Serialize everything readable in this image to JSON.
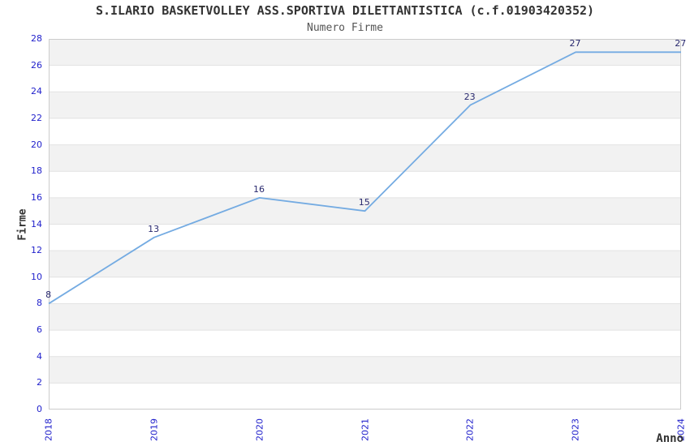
{
  "chart_data": {
    "type": "line",
    "title": "S.ILARIO BASKETVOLLEY ASS.SPORTIVA DILETTANTISTICA (c.f.01903420352)",
    "subtitle": "Numero Firme",
    "xlabel": "Anno",
    "ylabel": "Firme",
    "categories": [
      "2018",
      "2019",
      "2020",
      "2021",
      "2022",
      "2023",
      "2024"
    ],
    "series": [
      {
        "name": "Numero Firme",
        "values": [
          8,
          13,
          16,
          15,
          23,
          27,
          27
        ]
      }
    ],
    "data_labels": [
      "8",
      "13",
      "16",
      "15",
      "23",
      "27",
      "27"
    ],
    "ylim": [
      0,
      28
    ],
    "ytick_step": 2,
    "grid": true,
    "legend_position": "none",
    "colors": {
      "line": "#74abe2",
      "point_label": "#28286e",
      "tick_label": "#2222cc",
      "band_fill": "#f2f2f2",
      "gridline": "#e2e2e2",
      "plot_border": "#cccccc",
      "title": "#333333",
      "background": "#ffffff"
    }
  }
}
